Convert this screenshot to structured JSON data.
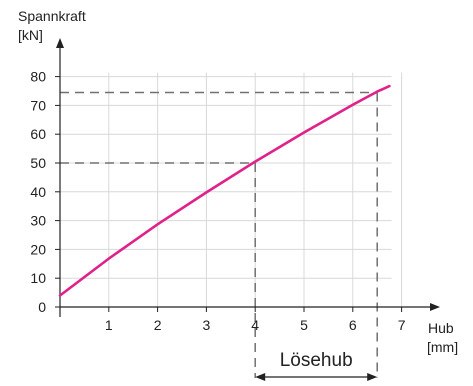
{
  "chart_data": {
    "type": "line",
    "ylabel_line1": "Spannkraft",
    "ylabel_line2": "[kN]",
    "xlabel_line1": "Hub",
    "xlabel_line2": "[mm]",
    "xlim": [
      0,
      7
    ],
    "ylim": [
      0,
      80
    ],
    "x_ticks": [
      1,
      2,
      3,
      4,
      5,
      6,
      7
    ],
    "y_ticks": [
      0,
      10,
      20,
      30,
      40,
      50,
      60,
      70,
      80
    ],
    "grid": true,
    "series": [
      {
        "color": "#e0218a",
        "x": [
          0,
          1,
          2,
          3,
          4,
          5,
          6,
          6.5,
          6.75
        ],
        "y": [
          4,
          16.8,
          28.7,
          39.8,
          50.5,
          60.6,
          70.2,
          74.8,
          76.7
        ]
      }
    ],
    "reference_lines": [
      {
        "x": 4,
        "y": 50
      },
      {
        "x": 6.5,
        "y": 74.5
      }
    ],
    "range_annotation": {
      "label": "Lösehub",
      "from_x": 4,
      "to_x": 6.5
    },
    "colors": {
      "curve": "#e0218a",
      "axis": "#222222",
      "grid": "#d8d8d8",
      "reference": "#707070"
    }
  }
}
